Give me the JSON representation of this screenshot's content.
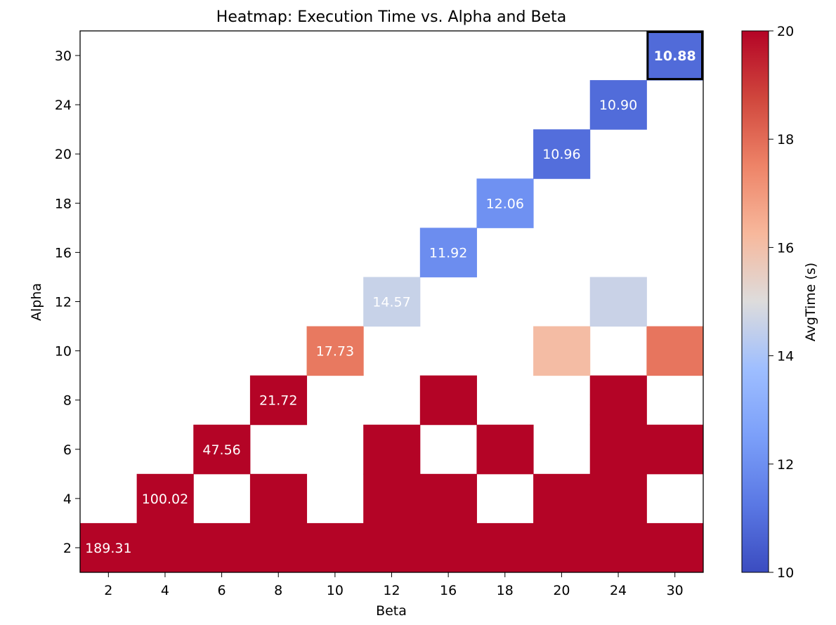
{
  "chart_data": {
    "type": "heatmap",
    "title": "Heatmap: Execution Time vs. Alpha and Beta",
    "xlabel": "Beta",
    "ylabel": "Alpha",
    "x_categories": [
      "2",
      "4",
      "6",
      "8",
      "10",
      "12",
      "16",
      "18",
      "20",
      "24",
      "30"
    ],
    "y_categories": [
      "2",
      "4",
      "6",
      "8",
      "10",
      "12",
      "16",
      "18",
      "20",
      "24",
      "30"
    ],
    "color_range": [
      10,
      20
    ],
    "colormap": "coolwarm",
    "colorbar": {
      "label": "AvgTime (s)",
      "ticks": [
        "10",
        "12",
        "14",
        "16",
        "18",
        "20"
      ]
    },
    "cells": [
      {
        "beta": "2",
        "alpha": "2",
        "value": 189.31,
        "label": "189.31"
      },
      {
        "beta": "4",
        "alpha": "2",
        "value": 20
      },
      {
        "beta": "6",
        "alpha": "2",
        "value": 20
      },
      {
        "beta": "8",
        "alpha": "2",
        "value": 20
      },
      {
        "beta": "10",
        "alpha": "2",
        "value": 20
      },
      {
        "beta": "12",
        "alpha": "2",
        "value": 20
      },
      {
        "beta": "16",
        "alpha": "2",
        "value": 20
      },
      {
        "beta": "18",
        "alpha": "2",
        "value": 20
      },
      {
        "beta": "20",
        "alpha": "2",
        "value": 20
      },
      {
        "beta": "24",
        "alpha": "2",
        "value": 20
      },
      {
        "beta": "30",
        "alpha": "2",
        "value": 20
      },
      {
        "beta": "4",
        "alpha": "4",
        "value": 100.02,
        "label": "100.02"
      },
      {
        "beta": "8",
        "alpha": "4",
        "value": 20
      },
      {
        "beta": "12",
        "alpha": "4",
        "value": 20
      },
      {
        "beta": "16",
        "alpha": "4",
        "value": 20
      },
      {
        "beta": "20",
        "alpha": "4",
        "value": 20
      },
      {
        "beta": "24",
        "alpha": "4",
        "value": 20
      },
      {
        "beta": "6",
        "alpha": "6",
        "value": 47.56,
        "label": "47.56"
      },
      {
        "beta": "12",
        "alpha": "6",
        "value": 20
      },
      {
        "beta": "18",
        "alpha": "6",
        "value": 20
      },
      {
        "beta": "24",
        "alpha": "6",
        "value": 20
      },
      {
        "beta": "30",
        "alpha": "6",
        "value": 20
      },
      {
        "beta": "8",
        "alpha": "8",
        "value": 21.72,
        "label": "21.72"
      },
      {
        "beta": "16",
        "alpha": "8",
        "value": 20
      },
      {
        "beta": "24",
        "alpha": "8",
        "value": 20
      },
      {
        "beta": "10",
        "alpha": "10",
        "value": 17.73,
        "label": "17.73"
      },
      {
        "beta": "20",
        "alpha": "10",
        "value": 16.1
      },
      {
        "beta": "30",
        "alpha": "10",
        "value": 17.8
      },
      {
        "beta": "12",
        "alpha": "12",
        "value": 14.57,
        "label": "14.57"
      },
      {
        "beta": "24",
        "alpha": "12",
        "value": 14.6
      },
      {
        "beta": "16",
        "alpha": "16",
        "value": 11.92,
        "label": "11.92"
      },
      {
        "beta": "18",
        "alpha": "18",
        "value": 12.06,
        "label": "12.06"
      },
      {
        "beta": "20",
        "alpha": "20",
        "value": 10.96,
        "label": "10.96"
      },
      {
        "beta": "24",
        "alpha": "24",
        "value": 10.9,
        "label": "10.90"
      },
      {
        "beta": "30",
        "alpha": "30",
        "value": 10.88,
        "label": "10.88",
        "highlight": true
      }
    ]
  }
}
